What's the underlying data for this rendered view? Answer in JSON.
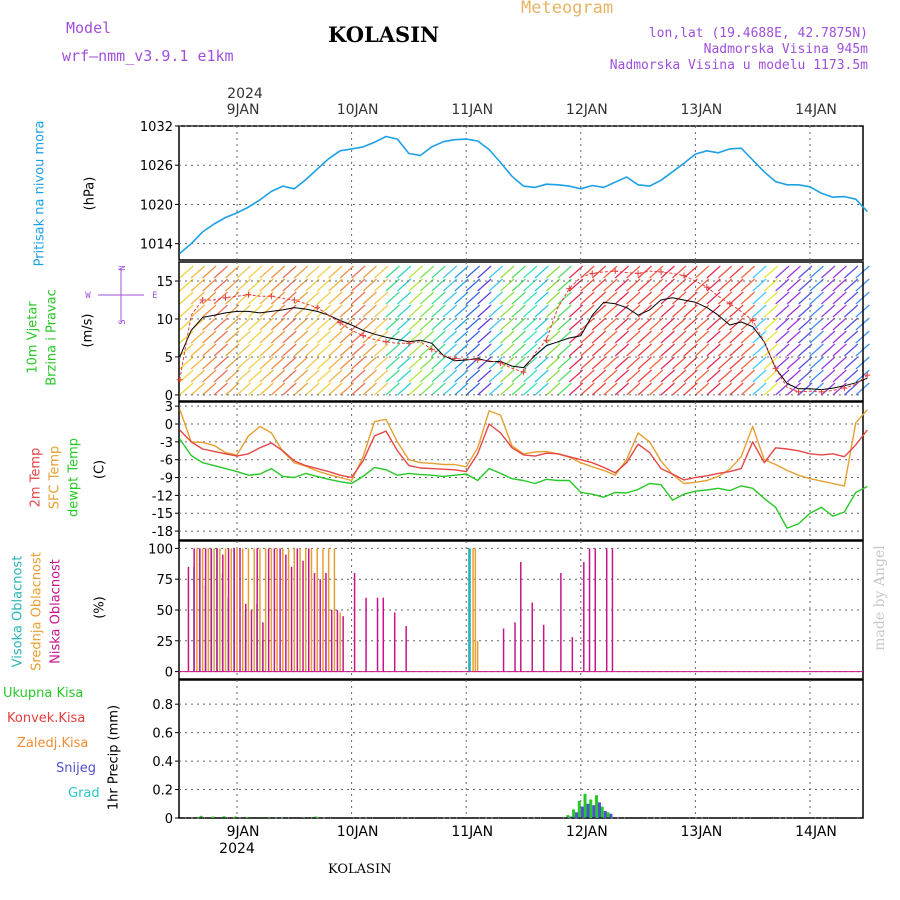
{
  "header": {
    "model_label": "Model",
    "model_name": "wrf–nmm_v3.9.1  e1km",
    "location_title": "KOLASIN",
    "chart_type_label": "Meteogram",
    "lonlat": "lon,lat (19.4688E, 42.7875N)",
    "altitude": "Nadmorska Visina 945m",
    "model_altitude": "Nadmorska Visina u modelu 1173.5m",
    "footer_location": "KOLASIN",
    "watermark": "made by Angel"
  },
  "colors": {
    "pressure": "#1ea0e6",
    "temp2m": "#e64646",
    "sfc_temp": "#e6a032",
    "dewpt": "#28c828",
    "high_cloud": "#28b4b4",
    "mid_cloud": "#e6a032",
    "low_cloud": "#c8148c",
    "total_precip": "#28c828",
    "conv_precip": "#e63c3c",
    "freezing_precip": "#f08c32",
    "snow": "#5050d2",
    "graupel": "#28c8c8",
    "header_purple": "#a050dc",
    "meteogram_orange": "#e6b464"
  },
  "axes": {
    "top_year": "2024",
    "bottom_year": "2024",
    "days": [
      "9JAN",
      "10JAN",
      "11JAN",
      "12JAN",
      "13JAN",
      "14JAN"
    ]
  },
  "chart_data": [
    {
      "type": "line",
      "panel": "pressure",
      "ylabel_left": "Pritisak na nivou mora",
      "ylabel_unit": "(hPa)",
      "yticks": [
        1014,
        1020,
        1026,
        1032
      ],
      "ylim": [
        1011.5,
        1032.0
      ],
      "x": [
        -0.5,
        -0.4,
        -0.3,
        -0.2,
        -0.1,
        0.0,
        0.1,
        0.2,
        0.3,
        0.4,
        0.5,
        0.6,
        0.7,
        0.8,
        0.9,
        1.0,
        1.1,
        1.2,
        1.3,
        1.4,
        1.5,
        1.6,
        1.7,
        1.8,
        1.9,
        2.0,
        2.1,
        2.2,
        2.3,
        2.4,
        2.5,
        2.6,
        2.7,
        2.8,
        2.9,
        3.0,
        3.1,
        3.2,
        3.3,
        3.4,
        3.5,
        3.6,
        3.7,
        3.8,
        3.9,
        4.0,
        4.1,
        4.2,
        4.3,
        4.4,
        4.5,
        4.6,
        4.7,
        4.8,
        4.9,
        5.0,
        5.1,
        5.2,
        5.3,
        5.4,
        5.5
      ],
      "series": [
        {
          "values": [
            1012.5,
            1014.0,
            1015.8,
            1017.0,
            1018.0,
            1018.7,
            1019.6,
            1020.7,
            1022.0,
            1022.8,
            1022.4,
            1023.8,
            1025.4,
            1027.0,
            1028.2,
            1028.5,
            1028.8,
            1029.5,
            1030.4,
            1030.0,
            1027.8,
            1027.5,
            1028.8,
            1029.6,
            1029.9,
            1030.0,
            1029.7,
            1028.4,
            1026.4,
            1024.3,
            1022.8,
            1022.6,
            1023.1,
            1023.0,
            1022.8,
            1022.4,
            1022.9,
            1022.6,
            1023.4,
            1024.2,
            1023.0,
            1022.8,
            1023.7,
            1025.0,
            1026.3,
            1027.7,
            1028.2,
            1027.9,
            1028.5,
            1028.6,
            1026.8,
            1025.0,
            1023.5,
            1023.0,
            1023.0,
            1022.7,
            1021.7,
            1021.1,
            1021.2,
            1020.8,
            1018.9
          ]
        }
      ]
    },
    {
      "type": "line",
      "panel": "wind",
      "ylabel_left": "10m Vjetar Brzina i Pravac",
      "ylabel_unit": "(m/s)",
      "compass": {
        "n": "N",
        "s": "S",
        "e": "E",
        "w": "W"
      },
      "yticks": [
        0,
        5,
        10,
        15
      ],
      "ylim": [
        -0.8,
        17.5
      ],
      "x": [
        -0.5,
        -0.4,
        -0.3,
        -0.2,
        -0.1,
        0.0,
        0.1,
        0.2,
        0.3,
        0.4,
        0.5,
        0.6,
        0.7,
        0.8,
        0.9,
        1.0,
        1.1,
        1.2,
        1.3,
        1.4,
        1.5,
        1.6,
        1.7,
        1.8,
        1.9,
        2.0,
        2.1,
        2.2,
        2.3,
        2.4,
        2.5,
        2.6,
        2.7,
        2.8,
        2.9,
        3.0,
        3.1,
        3.2,
        3.3,
        3.4,
        3.5,
        3.6,
        3.7,
        3.8,
        3.9,
        4.0,
        4.1,
        4.2,
        4.3,
        4.4,
        4.5,
        4.6,
        4.7,
        4.8,
        4.9,
        5.0,
        5.1,
        5.2,
        5.3,
        5.4,
        5.5
      ],
      "series": [
        {
          "name": "brzina",
          "values": [
            5.0,
            8.5,
            10.2,
            10.5,
            10.8,
            11.0,
            11.0,
            10.8,
            11.0,
            11.2,
            11.5,
            11.3,
            11.0,
            10.5,
            9.8,
            9.2,
            8.5,
            8.0,
            7.6,
            7.3,
            7.0,
            7.2,
            6.8,
            5.2,
            4.5,
            4.6,
            4.8,
            4.4,
            4.4,
            3.8,
            3.6,
            5.2,
            6.5,
            7.0,
            7.5,
            7.8,
            10.5,
            12.2,
            12.0,
            11.5,
            10.5,
            11.2,
            12.5,
            12.8,
            12.5,
            12.2,
            11.5,
            10.5,
            9.2,
            9.6,
            9.0,
            7.0,
            3.5,
            1.5,
            0.8,
            0.8,
            0.7,
            0.9,
            1.2,
            1.6,
            2.2
          ]
        },
        {
          "name": "udari",
          "values": [
            2.0,
            10.5,
            12.5,
            12.5,
            12.8,
            13.0,
            13.2,
            13.0,
            13.0,
            12.7,
            12.5,
            12.0,
            11.5,
            10.5,
            9.5,
            8.5,
            7.8,
            7.3,
            7.0,
            6.8,
            6.8,
            7.0,
            6.0,
            5.2,
            4.8,
            4.7,
            4.6,
            4.5,
            4.2,
            3.5,
            3.0,
            5.5,
            7.2,
            11.5,
            14.0,
            15.5,
            16.0,
            16.2,
            16.3,
            16.1,
            16.0,
            16.3,
            16.2,
            16.0,
            15.7,
            15.0,
            14.2,
            13.0,
            12.0,
            11.0,
            9.8,
            7.0,
            3.5,
            1.0,
            0.4,
            0.5,
            0.4,
            0.6,
            0.9,
            1.4,
            2.6
          ]
        }
      ]
    },
    {
      "type": "line",
      "panel": "temperature",
      "ylabel_left": [
        "2m Temp",
        "SFC Temp",
        "dewpt Temp"
      ],
      "ylabel_unit": "(C)",
      "yticks": [
        3,
        0,
        -3,
        -6,
        -9,
        -12,
        -15,
        -18
      ],
      "ylim": [
        -19.5,
        3.7
      ],
      "x": [
        -0.5,
        -0.4,
        -0.3,
        -0.2,
        -0.1,
        0.0,
        0.1,
        0.2,
        0.3,
        0.4,
        0.5,
        0.6,
        0.7,
        0.8,
        0.9,
        1.0,
        1.1,
        1.2,
        1.3,
        1.4,
        1.5,
        1.6,
        1.7,
        1.8,
        1.9,
        2.0,
        2.1,
        2.2,
        2.3,
        2.4,
        2.5,
        2.6,
        2.7,
        2.8,
        2.9,
        3.0,
        3.1,
        3.2,
        3.3,
        3.4,
        3.5,
        3.6,
        3.7,
        3.8,
        3.9,
        4.0,
        4.1,
        4.2,
        4.3,
        4.4,
        4.5,
        4.6,
        4.7,
        4.8,
        4.9,
        5.0,
        5.1,
        5.2,
        5.3,
        5.4,
        5.5
      ],
      "series": [
        {
          "name": "2m Temp",
          "values": [
            -1.0,
            -3.0,
            -4.2,
            -4.6,
            -5.0,
            -5.4,
            -5.0,
            -4.0,
            -3.2,
            -4.5,
            -6.2,
            -7.0,
            -7.5,
            -8.0,
            -8.6,
            -9.0,
            -6.2,
            -2.0,
            -1.2,
            -4.5,
            -7.0,
            -7.4,
            -7.5,
            -7.6,
            -7.7,
            -8.0,
            -5.0,
            0.0,
            -1.5,
            -4.0,
            -5.2,
            -5.4,
            -4.9,
            -5.0,
            -5.5,
            -6.0,
            -6.5,
            -7.3,
            -8.2,
            -6.5,
            -3.4,
            -4.8,
            -7.5,
            -8.4,
            -9.4,
            -9.0,
            -8.7,
            -8.3,
            -8.0,
            -7.5,
            -3.0,
            -6.5,
            -4.0,
            -4.2,
            -4.5,
            -5.0,
            -5.2,
            -5.0,
            -5.5,
            -3.5,
            -1.0
          ]
        },
        {
          "name": "SFC Temp",
          "values": [
            2.5,
            -3.0,
            -3.1,
            -3.6,
            -4.8,
            -5.2,
            -2.0,
            -0.4,
            -1.5,
            -4.6,
            -6.5,
            -7.1,
            -7.9,
            -8.5,
            -9.0,
            -9.5,
            -5.5,
            0.4,
            0.8,
            -3.0,
            -6.0,
            -6.5,
            -6.6,
            -6.8,
            -6.8,
            -7.2,
            -4.0,
            2.2,
            1.5,
            -3.7,
            -5.0,
            -4.7,
            -4.6,
            -5.0,
            -5.6,
            -6.5,
            -7.2,
            -7.8,
            -8.6,
            -6.0,
            -1.5,
            -3.0,
            -6.2,
            -8.5,
            -10.0,
            -9.8,
            -9.5,
            -8.8,
            -7.6,
            -5.5,
            -0.4,
            -6.0,
            -6.8,
            -7.8,
            -8.6,
            -9.2,
            -9.6,
            -10.0,
            -10.4,
            0.2,
            2.4
          ]
        },
        {
          "name": "dewpt Temp",
          "values": [
            -2.5,
            -5.3,
            -6.5,
            -7.0,
            -7.5,
            -8.0,
            -8.6,
            -8.4,
            -7.5,
            -8.8,
            -9.0,
            -8.3,
            -8.8,
            -9.3,
            -9.7,
            -10.0,
            -8.8,
            -7.3,
            -7.7,
            -8.6,
            -8.3,
            -8.5,
            -8.6,
            -8.8,
            -8.6,
            -8.4,
            -9.5,
            -7.5,
            -8.3,
            -9.2,
            -9.5,
            -10.0,
            -9.3,
            -9.5,
            -9.5,
            -11.5,
            -11.8,
            -12.3,
            -11.5,
            -11.6,
            -11.0,
            -10.0,
            -10.2,
            -12.8,
            -11.8,
            -11.3,
            -11.1,
            -10.8,
            -11.2,
            -10.4,
            -10.8,
            -12.5,
            -14.0,
            -17.5,
            -16.8,
            -15.0,
            -14.0,
            -15.5,
            -14.8,
            -11.5,
            -10.5
          ]
        }
      ]
    },
    {
      "type": "bar",
      "panel": "cloud",
      "ylabel_left": [
        "Visoka Oblacnost",
        "Srednja Oblacnost",
        "Niska Oblacnost"
      ],
      "ylabel_unit": "(%)",
      "yticks": [
        0,
        25,
        50,
        75,
        100
      ],
      "ylim": [
        -6,
        106
      ],
      "x": [
        -0.45,
        -0.4,
        -0.35,
        -0.3,
        -0.25,
        -0.2,
        -0.15,
        -0.1,
        -0.05,
        0.0,
        0.05,
        0.1,
        0.15,
        0.2,
        0.25,
        0.3,
        0.35,
        0.4,
        0.45,
        0.5,
        0.55,
        0.6,
        0.65,
        0.7,
        0.75,
        0.8,
        0.85,
        0.9,
        1.0,
        1.1,
        1.2,
        1.25,
        1.35,
        1.45,
        2.05,
        2.06,
        2.08,
        2.1,
        2.12,
        2.3,
        2.4,
        2.45,
        2.55,
        2.65,
        2.8,
        2.9,
        3.0,
        3.05,
        3.1,
        3.2,
        3.25
      ],
      "series": [
        {
          "name": "Visoka Oblacnost",
          "values": [
            0,
            0,
            85,
            100,
            70,
            100,
            100,
            80,
            60,
            100,
            0,
            50,
            0,
            55,
            25,
            0,
            0,
            0,
            0,
            0,
            0,
            0,
            0,
            0,
            0,
            0,
            0,
            0,
            0,
            0,
            0,
            0,
            0,
            0,
            100,
            100,
            0,
            0,
            0,
            0,
            0,
            0,
            0,
            0,
            0,
            0,
            0,
            0,
            0,
            0,
            0
          ]
        },
        {
          "name": "Srednja Oblacnost",
          "values": [
            0,
            0,
            100,
            100,
            100,
            100,
            100,
            100,
            100,
            100,
            100,
            100,
            100,
            100,
            100,
            100,
            100,
            100,
            100,
            100,
            100,
            100,
            100,
            100,
            100,
            100,
            100,
            48,
            0,
            0,
            0,
            0,
            0,
            0,
            0,
            100,
            100,
            25,
            0,
            0,
            0,
            0,
            0,
            0,
            0,
            0,
            0,
            0,
            0,
            0,
            0
          ]
        },
        {
          "name": "Niska Oblacnost",
          "values": [
            85,
            100,
            100,
            100,
            100,
            100,
            95,
            100,
            100,
            100,
            55,
            50,
            100,
            40,
            100,
            100,
            100,
            95,
            85,
            100,
            90,
            100,
            80,
            75,
            80,
            50,
            50,
            45,
            80,
            60,
            60,
            60,
            48,
            37,
            0,
            0,
            0,
            0,
            0,
            35,
            40,
            89,
            56,
            38,
            80,
            28,
            89,
            100,
            100,
            100,
            100
          ]
        }
      ]
    },
    {
      "type": "bar",
      "panel": "precip",
      "legend": [
        "Ukupna Kisa",
        "Konvek.Kisa",
        "Zaledj.Kisa",
        "Snijeg",
        "Grad"
      ],
      "ylabel_unit": "1hr Precip (mm)",
      "yticks": [
        0,
        0.2,
        0.4,
        0.6,
        0.8
      ],
      "ylim": [
        0,
        0.97
      ],
      "x": [
        -0.3,
        -0.2,
        -0.1,
        0.0,
        0.1,
        0.2,
        0.3,
        0.4,
        0.5,
        0.6,
        0.7,
        0.8,
        2.9,
        2.95,
        3.0,
        3.05,
        3.1,
        3.15,
        3.2,
        3.25
      ],
      "series": [
        {
          "name": "Ukupna Kisa",
          "values": [
            0.015,
            0.01,
            0.012,
            0.01,
            0.008,
            0.006,
            0.005,
            0.005,
            0.004,
            0.004,
            0.01,
            0.005,
            0.02,
            0.06,
            0.12,
            0.17,
            0.13,
            0.16,
            0.08,
            0.04
          ]
        },
        {
          "name": "Snijeg",
          "values": [
            0,
            0,
            0,
            0,
            0,
            0,
            0,
            0,
            0,
            0,
            0,
            0,
            0.01,
            0.04,
            0.08,
            0.1,
            0.09,
            0.11,
            0.05,
            0.03
          ]
        }
      ]
    }
  ]
}
